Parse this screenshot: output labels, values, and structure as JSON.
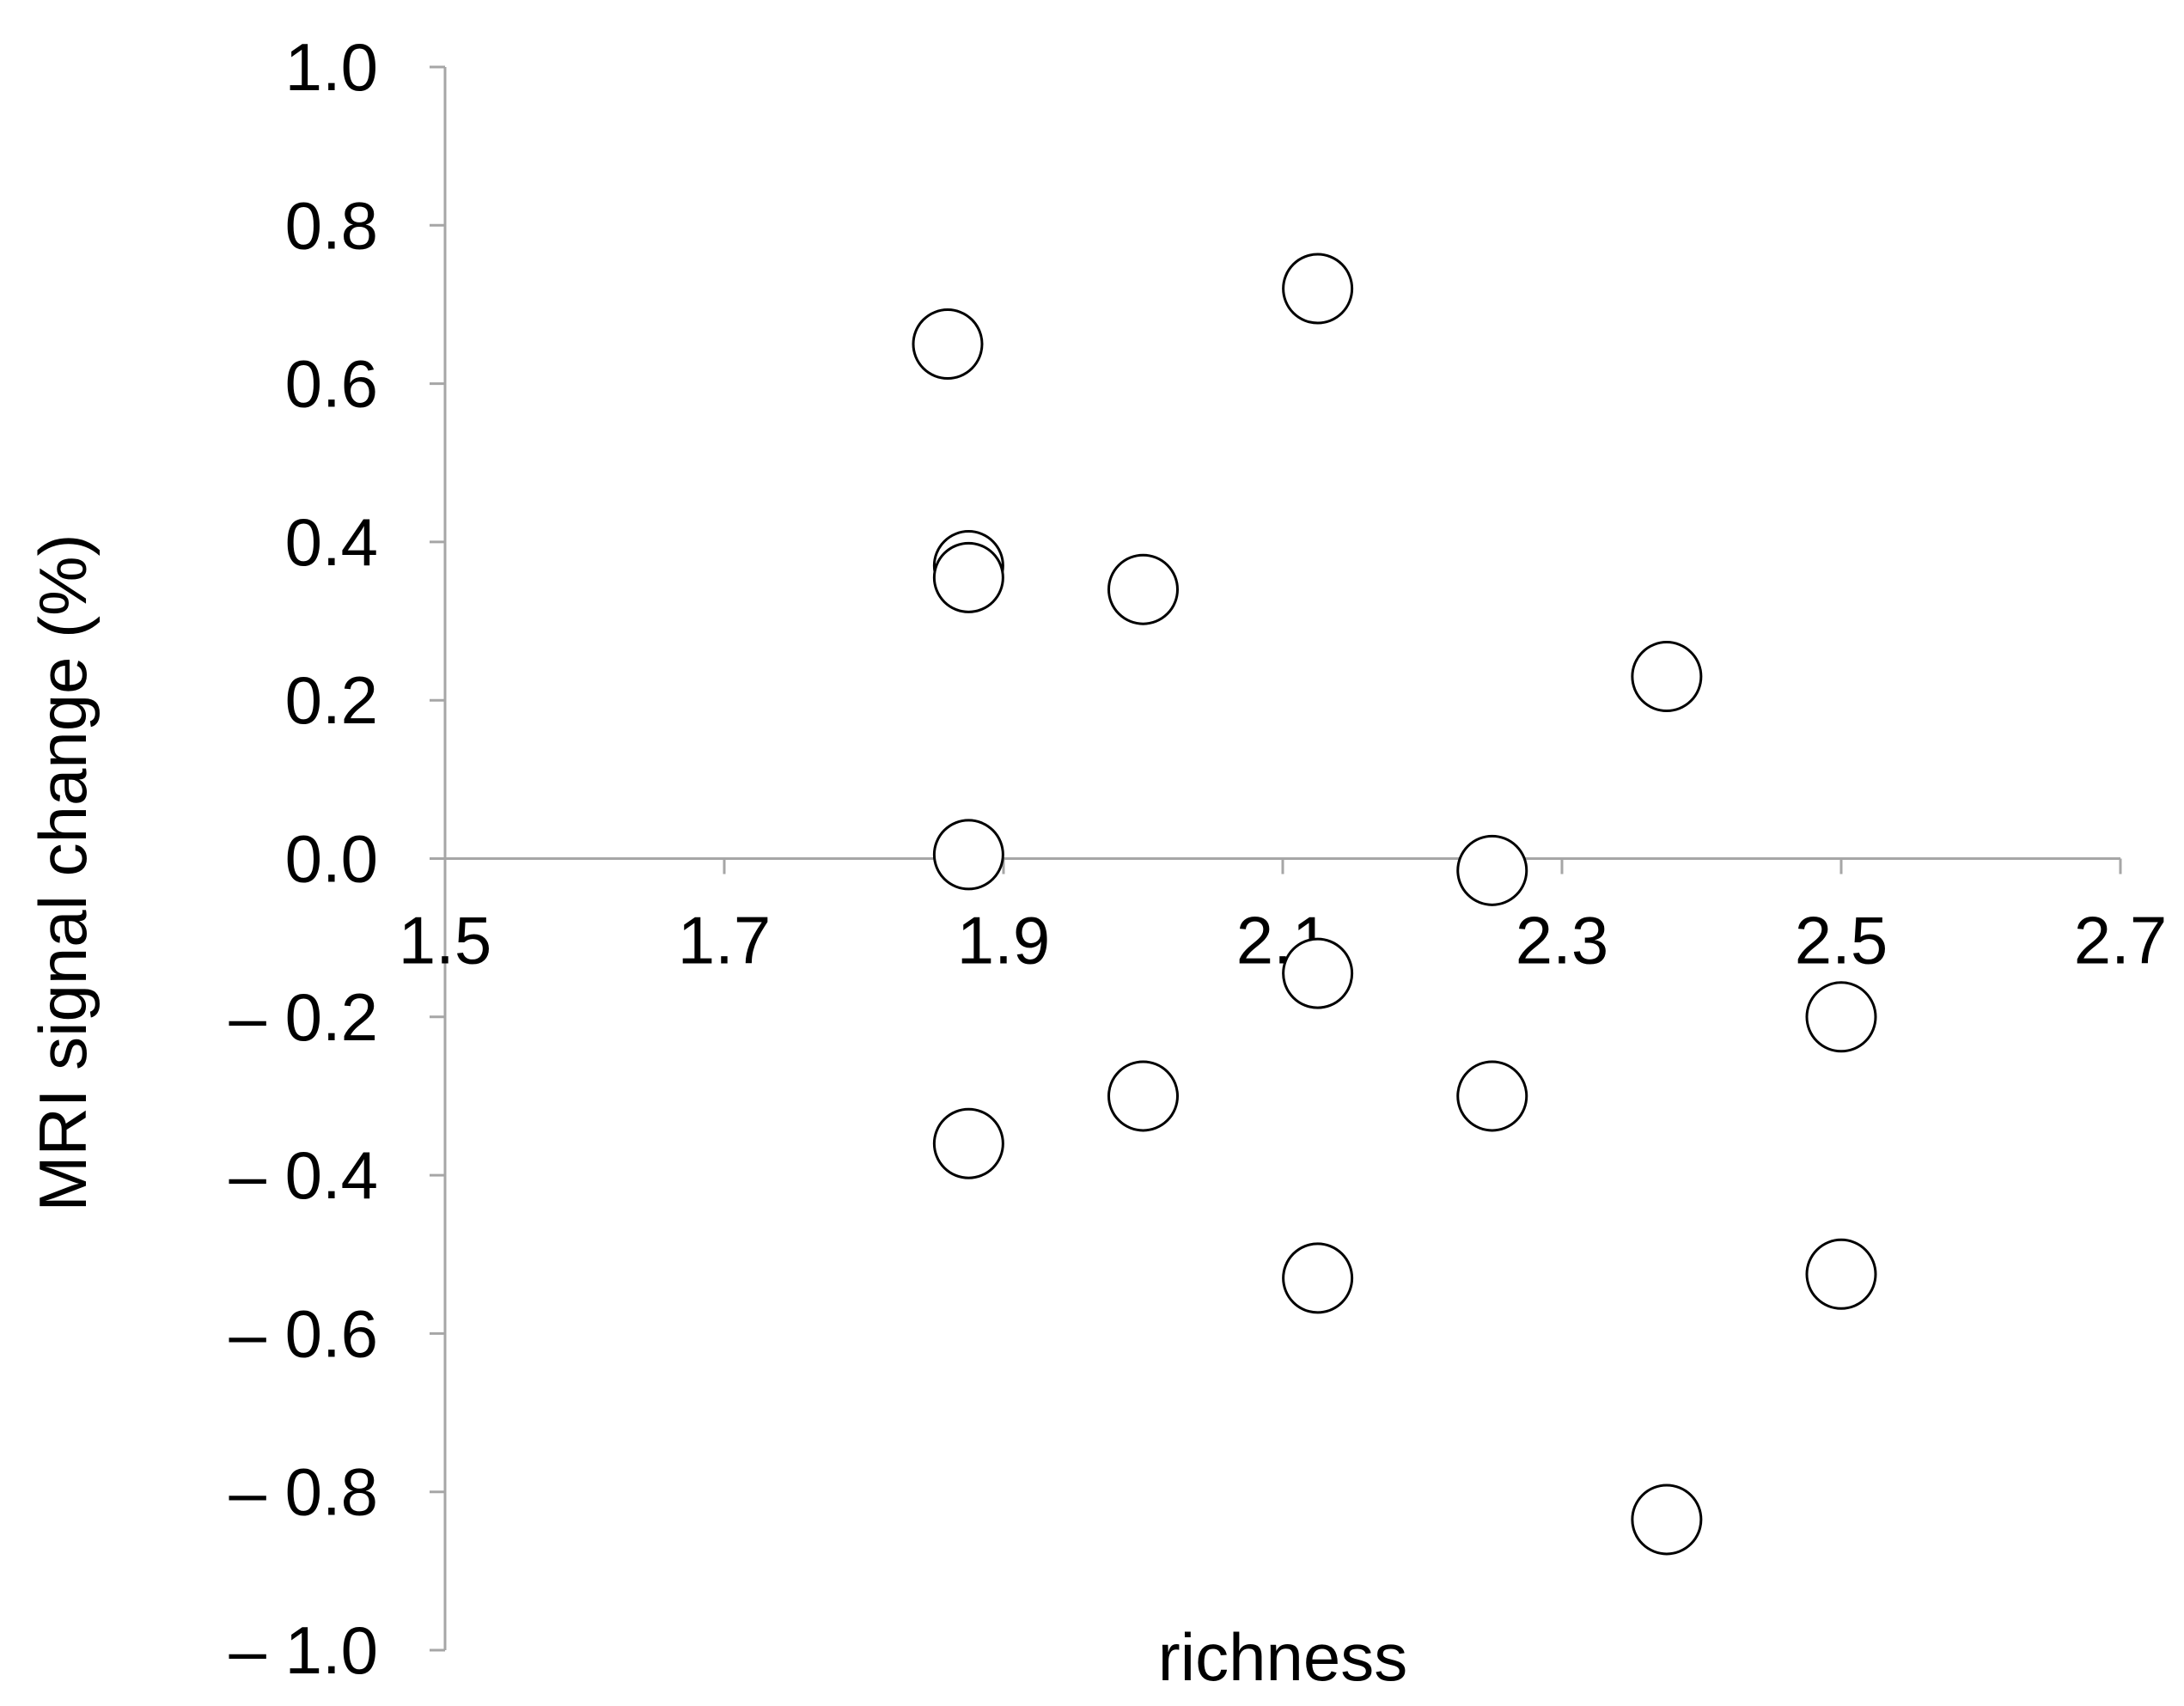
{
  "chart_data": {
    "type": "scatter",
    "title": "",
    "xlabel": "richness",
    "ylabel": "MRI signal change (%)",
    "xlim": [
      1.5,
      2.7
    ],
    "ylim": [
      -1.0,
      1.0
    ],
    "x_ticks": [
      1.5,
      1.7,
      1.9,
      2.1,
      2.3,
      2.5,
      2.7
    ],
    "x_tick_labels": [
      "1.5",
      "1.7",
      "1.9",
      "2.1",
      "2.3",
      "2.5",
      "2.7"
    ],
    "y_ticks": [
      1.0,
      0.8,
      0.6,
      0.4,
      0.2,
      0.0,
      -0.2,
      -0.4,
      -0.6,
      -0.8,
      -1.0
    ],
    "y_tick_labels": [
      "1.0",
      "0.8",
      "0.6",
      "0.4",
      "0.2",
      "0.0",
      "– 0.2",
      "– 0.4",
      "– 0.6",
      "– 0.8",
      "– 1.0"
    ],
    "grid": false,
    "legend": "none",
    "marker": "open-circle",
    "x_axis_crosses_at": 0.0,
    "series": [
      {
        "points": [
          {
            "x": 1.86,
            "y": 0.65
          },
          {
            "x": 1.875,
            "y": 0.37
          },
          {
            "x": 1.875,
            "y": 0.355
          },
          {
            "x": 1.875,
            "y": 0.005
          },
          {
            "x": 1.875,
            "y": -0.36
          },
          {
            "x": 2.0,
            "y": 0.34
          },
          {
            "x": 2.0,
            "y": -0.3
          },
          {
            "x": 2.125,
            "y": 0.72
          },
          {
            "x": 2.125,
            "y": -0.145
          },
          {
            "x": 2.125,
            "y": -0.53
          },
          {
            "x": 2.25,
            "y": -0.015
          },
          {
            "x": 2.25,
            "y": -0.3
          },
          {
            "x": 2.375,
            "y": 0.23
          },
          {
            "x": 2.375,
            "y": -0.835
          },
          {
            "x": 2.5,
            "y": -0.2
          },
          {
            "x": 2.5,
            "y": -0.525
          }
        ]
      }
    ]
  }
}
